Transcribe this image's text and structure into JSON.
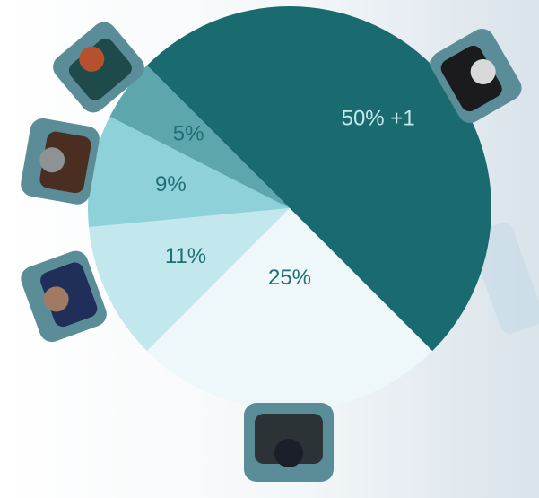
{
  "chart_data": {
    "type": "pie",
    "values": [
      50,
      25,
      11,
      9,
      5
    ],
    "value_labels": [
      "50% +1",
      "25%",
      "11%",
      "9%",
      "5%"
    ],
    "colors": [
      "#1a6b70",
      "#eef8fb",
      "#c2e7ed",
      "#8fd1d9",
      "#5ca6ac"
    ]
  }
}
